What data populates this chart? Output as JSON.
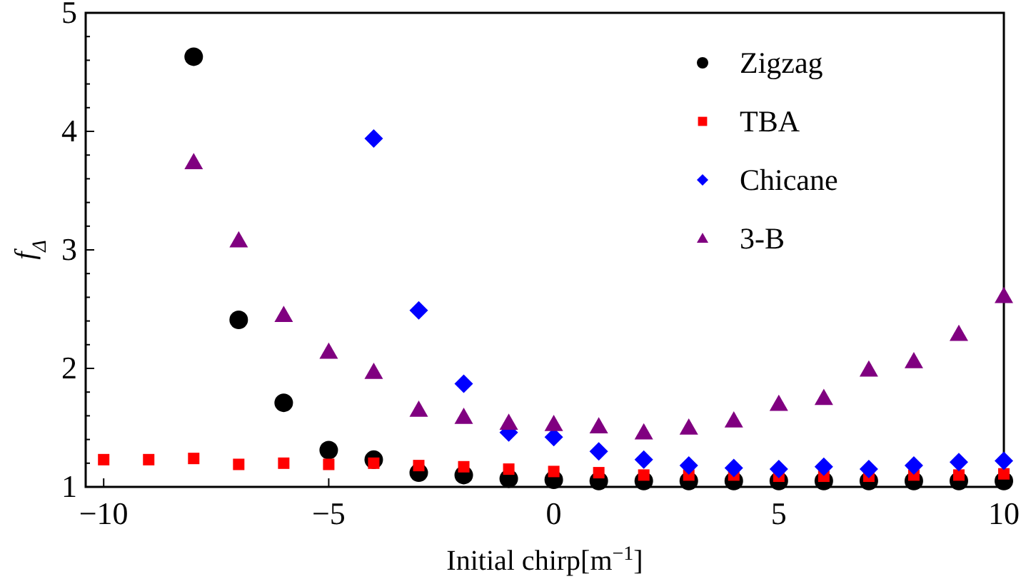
{
  "chart_data": {
    "type": "scatter",
    "xlabel": "Initial chirp[m$^{−1}$]",
    "ylabel": "f$_{Δ}$",
    "x": [
      -10,
      -9,
      -8,
      -7,
      -6,
      -5,
      -4,
      -3,
      -2,
      -1,
      0,
      1,
      2,
      3,
      4,
      5,
      6,
      7,
      8,
      9,
      10
    ],
    "xlim": [
      -10.4,
      10
    ],
    "ylim": [
      1,
      5
    ],
    "xticks": [
      {
        "value": -10,
        "label": "−10"
      },
      {
        "value": -5,
        "label": "−5"
      },
      0,
      5,
      10
    ],
    "yticks": [
      1,
      {
        "value": 1.2,
        "label": null
      },
      {
        "value": 1.4,
        "label": null
      },
      {
        "value": 1.6,
        "label": null
      },
      {
        "value": 1.8,
        "label": null
      },
      2,
      {
        "value": 2.2,
        "label": null
      },
      {
        "value": 2.4,
        "label": null
      },
      {
        "value": 2.6,
        "label": null
      },
      {
        "value": 2.8,
        "label": null
      },
      3,
      {
        "value": 3.2,
        "label": null
      },
      {
        "value": 3.4,
        "label": null
      },
      {
        "value": 3.6,
        "label": null
      },
      {
        "value": 3.8,
        "label": null
      },
      4,
      {
        "value": 4.2,
        "label": null
      },
      {
        "value": 4.4,
        "label": null
      },
      {
        "value": 4.6,
        "label": null
      },
      {
        "value": 4.8,
        "label": null
      },
      5
    ],
    "legend": "top right",
    "grid": false,
    "series": [
      {
        "name": "Zigzag",
        "color": "#000000",
        "marker": "circle",
        "values": [
          null,
          null,
          4.63,
          2.41,
          1.71,
          1.31,
          1.23,
          1.12,
          1.1,
          1.07,
          1.06,
          1.05,
          1.05,
          1.05,
          1.05,
          1.05,
          1.05,
          1.05,
          1.05,
          1.05,
          1.05
        ]
      },
      {
        "name": "TBA",
        "color": "#ff0000",
        "marker": "square",
        "values": [
          1.23,
          1.23,
          1.24,
          1.19,
          1.2,
          1.19,
          1.2,
          1.18,
          1.17,
          1.15,
          1.13,
          1.12,
          1.1,
          1.1,
          1.1,
          1.09,
          1.09,
          1.09,
          1.1,
          1.1,
          1.11
        ]
      },
      {
        "name": "Chicane",
        "color": "#0000ff",
        "marker": "diamond",
        "values": [
          null,
          null,
          null,
          null,
          null,
          null,
          3.94,
          2.49,
          1.87,
          1.46,
          1.42,
          1.3,
          1.23,
          1.18,
          1.16,
          1.15,
          1.17,
          1.15,
          1.18,
          1.21,
          1.22
        ]
      },
      {
        "name": "3-B",
        "color": "#800080",
        "marker": "triangle",
        "values": [
          null,
          null,
          3.74,
          3.08,
          2.45,
          2.14,
          1.97,
          1.65,
          1.59,
          1.54,
          1.53,
          1.51,
          1.46,
          1.5,
          1.56,
          1.7,
          1.75,
          1.99,
          2.06,
          2.29,
          2.61
        ]
      }
    ]
  }
}
